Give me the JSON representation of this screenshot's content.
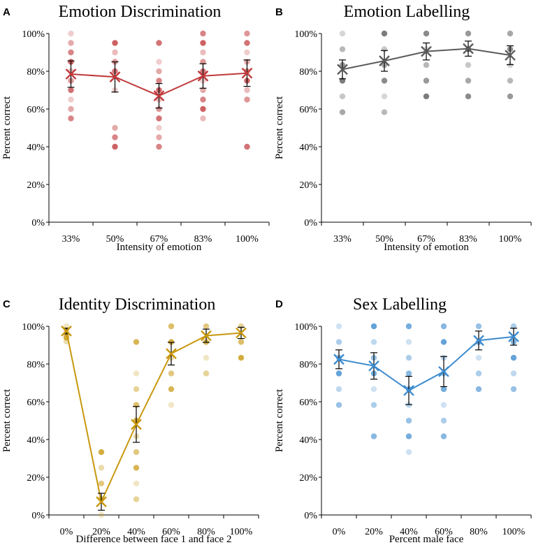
{
  "chart_data": [
    {
      "type": "scatter",
      "panel_letter": "A",
      "title": "Emotion Discrimination",
      "xlabel": "Intensity of emotion",
      "ylabel": "Percent correct",
      "ylim": [
        0,
        100
      ],
      "yticks": [
        "0%",
        "20%",
        "40%",
        "60%",
        "80%",
        "100%"
      ],
      "categories": [
        "33%",
        "50%",
        "67%",
        "83%",
        "100%"
      ],
      "color": "#c0393b",
      "mean": [
        78.5,
        77,
        67,
        77.5,
        79
      ],
      "err": [
        7,
        8,
        6.5,
        6.5,
        7
      ],
      "points": [
        [
          100,
          95,
          90,
          85,
          80,
          75,
          70,
          65,
          60,
          55
        ],
        [
          95,
          90,
          85,
          80,
          70,
          50,
          45,
          40
        ],
        [
          95,
          85,
          80,
          75,
          70,
          65,
          60,
          55,
          50,
          45,
          40
        ],
        [
          100,
          95,
          90,
          85,
          80,
          75,
          70,
          65,
          60,
          55
        ],
        [
          100,
          95,
          90,
          85,
          80,
          75,
          70,
          65,
          40
        ]
      ]
    },
    {
      "type": "scatter",
      "panel_letter": "B",
      "title": "Emotion Labelling",
      "xlabel": "Intensity of emotion",
      "ylabel": "Percent correct",
      "ylim": [
        0,
        100
      ],
      "yticks": [
        "0%",
        "20%",
        "40%",
        "60%",
        "80%",
        "100%"
      ],
      "categories": [
        "33%",
        "50%",
        "67%",
        "83%",
        "100%"
      ],
      "color": "#5b5b5b",
      "mean": [
        81,
        85.5,
        90.5,
        92,
        88.5
      ],
      "err": [
        5,
        5.5,
        4.5,
        4,
        5
      ],
      "points": [
        [
          100,
          91.7,
          83.3,
          75,
          66.7,
          58.3
        ],
        [
          100,
          91.7,
          83.3,
          75,
          66.7,
          58.3
        ],
        [
          100,
          91.7,
          83.3,
          75,
          66.7
        ],
        [
          100,
          91.7,
          83.3,
          75,
          66.7
        ],
        [
          100,
          91.7,
          83.3,
          75,
          66.7
        ]
      ]
    },
    {
      "type": "scatter",
      "panel_letter": "C",
      "title": "Identity Discrimination",
      "xlabel": "Difference between face 1 and face 2",
      "ylabel": "Percent correct",
      "ylim": [
        0,
        100
      ],
      "yticks": [
        "0%",
        "20%",
        "40%",
        "60%",
        "80%",
        "100%"
      ],
      "categories": [
        "0%",
        "20%",
        "40%",
        "60%",
        "80%",
        "100%"
      ],
      "color": "#c8980f",
      "mean": [
        97.5,
        7,
        48,
        85.5,
        95,
        96.5
      ],
      "err": [
        1.5,
        4.5,
        9.5,
        6,
        3.5,
        3
      ],
      "points": [
        [
          100,
          98,
          96,
          94,
          92
        ],
        [
          33.3,
          25,
          16.7,
          8.3,
          0
        ],
        [
          91.7,
          75,
          66.7,
          58.3,
          50,
          41.7,
          33.3,
          25,
          16.7,
          8.3
        ],
        [
          100,
          91.7,
          83.3,
          75,
          66.7,
          58.3
        ],
        [
          100,
          91.7,
          83.3,
          75
        ],
        [
          100,
          91.7,
          83.3
        ]
      ]
    },
    {
      "type": "scatter",
      "panel_letter": "D",
      "title": "Sex Labelling",
      "xlabel": "Percent male face",
      "ylabel": "Percent correct",
      "ylim": [
        0,
        100
      ],
      "yticks": [
        "0%",
        "20%",
        "40%",
        "60%",
        "80%",
        "100%"
      ],
      "categories": [
        "0%",
        "20%",
        "40%",
        "60%",
        "80%",
        "100%"
      ],
      "color": "#3d8ccf",
      "mean": [
        82.5,
        79,
        66,
        76,
        92.5,
        94.5
      ],
      "err": [
        5,
        7,
        7.5,
        8,
        5,
        4.5
      ],
      "points": [
        [
          100,
          91.7,
          83.3,
          75,
          66.7,
          58.3
        ],
        [
          100,
          91.7,
          83.3,
          75,
          66.7,
          58.3,
          41.7
        ],
        [
          100,
          91.7,
          83.3,
          75,
          66.7,
          58.3,
          50,
          41.7,
          33.3
        ],
        [
          100,
          91.7,
          83.3,
          75,
          66.7,
          58.3,
          50,
          41.7
        ],
        [
          100,
          91.7,
          83.3,
          75,
          66.7
        ],
        [
          100,
          91.7,
          83.3,
          75,
          66.7
        ]
      ]
    }
  ]
}
